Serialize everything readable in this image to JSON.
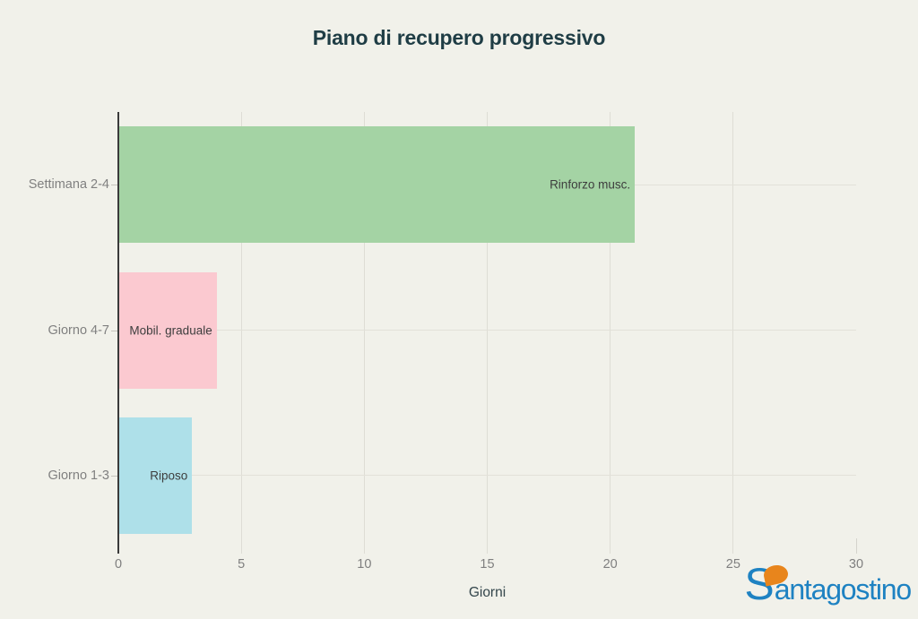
{
  "title": "Piano di recupero progressivo",
  "chart_data": {
    "type": "bar",
    "orientation": "horizontal",
    "title": "Piano di recupero progressivo",
    "xlabel": "Giorni",
    "ylabel": "",
    "xlim": [
      0,
      30
    ],
    "xticks": [
      0,
      5,
      10,
      15,
      20,
      25,
      30
    ],
    "grid": true,
    "legend": false,
    "categories": [
      "Settimana 2-4",
      "Giorno 4-7",
      "Giorno 1-3"
    ],
    "values": [
      21,
      4,
      3
    ],
    "bar_labels": [
      "Rinforzo musc.",
      "Mobil. graduale",
      "Riposo"
    ],
    "bar_colors": [
      "#a4d3a4",
      "#fbc9d0",
      "#aee0e9"
    ],
    "bar_label_color": "#3d3d3d",
    "background_color": "#f1f1ea",
    "title_color": "#1f3d45",
    "axis_line_color": "#3a3a3a",
    "grid_color": "#e2e1d9",
    "tick_label_color": "#7f7f7f"
  },
  "branding": {
    "logo_name": "Santagostino",
    "logo_first_letter": "S",
    "logo_rest": "antagostino",
    "logo_blue": "#1e82c2",
    "logo_orange": "#e8851c"
  }
}
